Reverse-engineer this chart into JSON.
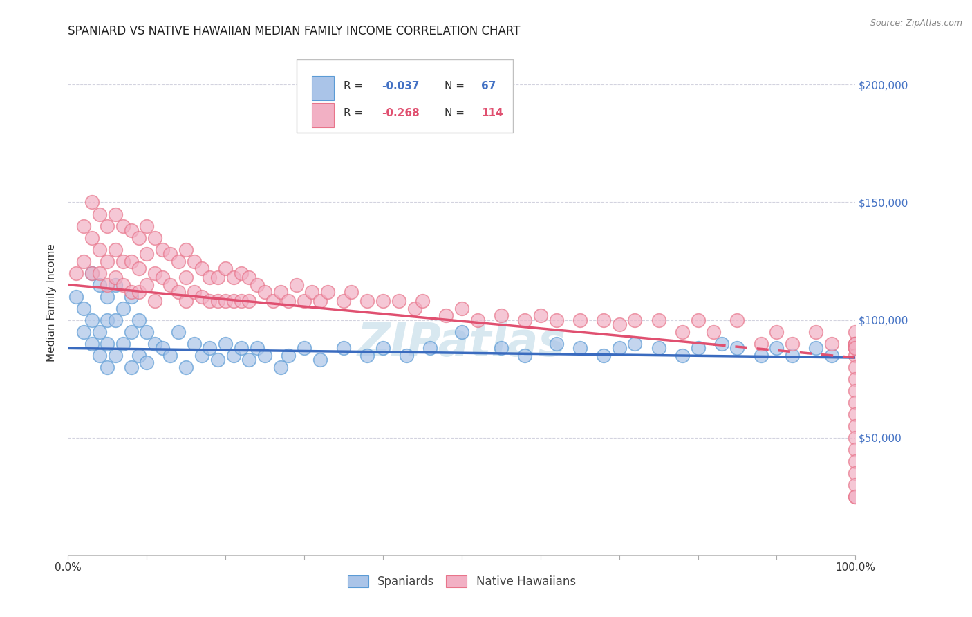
{
  "title": "SPANIARD VS NATIVE HAWAIIAN MEDIAN FAMILY INCOME CORRELATION CHART",
  "source_text": "Source: ZipAtlas.com",
  "ylabel": "Median Family Income",
  "xlim": [
    0,
    100
  ],
  "ylim": [
    0,
    215000
  ],
  "color_spaniards_fill": "#aac4e8",
  "color_hawaiians_fill": "#f2b0c4",
  "color_spaniards_edge": "#5b9bd5",
  "color_hawaiians_edge": "#e8748a",
  "line_color_spaniards": "#3a6bbf",
  "line_color_hawaiians": "#e05070",
  "text_color_blue": "#4472c4",
  "text_color_dark": "#333333",
  "watermark_color": "#d8e8f0",
  "background_color": "#ffffff",
  "grid_color": "#c8c8d8",
  "legend_r1": "-0.037",
  "legend_n1": "67",
  "legend_r2": "-0.268",
  "legend_n2": "114",
  "spaniards_x": [
    1,
    2,
    2,
    3,
    3,
    3,
    4,
    4,
    4,
    5,
    5,
    5,
    5,
    6,
    6,
    6,
    7,
    7,
    8,
    8,
    8,
    9,
    9,
    10,
    10,
    11,
    12,
    13,
    14,
    15,
    16,
    17,
    18,
    19,
    20,
    21,
    22,
    23,
    24,
    25,
    27,
    28,
    30,
    32,
    35,
    38,
    40,
    43,
    46,
    50,
    55,
    58,
    62,
    65,
    68,
    70,
    72,
    75,
    78,
    80,
    83,
    85,
    88,
    90,
    92,
    95,
    97
  ],
  "spaniards_y": [
    110000,
    105000,
    95000,
    120000,
    100000,
    90000,
    115000,
    95000,
    85000,
    110000,
    100000,
    90000,
    80000,
    115000,
    100000,
    85000,
    105000,
    90000,
    110000,
    95000,
    80000,
    100000,
    85000,
    95000,
    82000,
    90000,
    88000,
    85000,
    95000,
    80000,
    90000,
    85000,
    88000,
    83000,
    90000,
    85000,
    88000,
    83000,
    88000,
    85000,
    80000,
    85000,
    88000,
    83000,
    88000,
    85000,
    88000,
    85000,
    88000,
    95000,
    88000,
    85000,
    90000,
    88000,
    85000,
    88000,
    90000,
    88000,
    85000,
    88000,
    90000,
    88000,
    85000,
    88000,
    85000,
    88000,
    85000
  ],
  "hawaiians_x": [
    1,
    2,
    2,
    3,
    3,
    3,
    4,
    4,
    4,
    5,
    5,
    5,
    6,
    6,
    6,
    7,
    7,
    7,
    8,
    8,
    8,
    9,
    9,
    9,
    10,
    10,
    10,
    11,
    11,
    11,
    12,
    12,
    13,
    13,
    14,
    14,
    15,
    15,
    15,
    16,
    16,
    17,
    17,
    18,
    18,
    19,
    19,
    20,
    20,
    21,
    21,
    22,
    22,
    23,
    23,
    24,
    25,
    26,
    27,
    28,
    29,
    30,
    31,
    32,
    33,
    35,
    36,
    38,
    40,
    42,
    44,
    45,
    48,
    50,
    52,
    55,
    58,
    60,
    62,
    65,
    68,
    70,
    72,
    75,
    78,
    80,
    82,
    85,
    88,
    90,
    92,
    95,
    97,
    100,
    100,
    100,
    100,
    100,
    100,
    100,
    100,
    100,
    100,
    100,
    100,
    100,
    100,
    100,
    100,
    100,
    100,
    100,
    100,
    100
  ],
  "hawaiians_y": [
    120000,
    140000,
    125000,
    150000,
    135000,
    120000,
    145000,
    130000,
    120000,
    140000,
    125000,
    115000,
    145000,
    130000,
    118000,
    140000,
    125000,
    115000,
    138000,
    125000,
    112000,
    135000,
    122000,
    112000,
    140000,
    128000,
    115000,
    135000,
    120000,
    108000,
    130000,
    118000,
    128000,
    115000,
    125000,
    112000,
    130000,
    118000,
    108000,
    125000,
    112000,
    122000,
    110000,
    118000,
    108000,
    118000,
    108000,
    122000,
    108000,
    118000,
    108000,
    120000,
    108000,
    118000,
    108000,
    115000,
    112000,
    108000,
    112000,
    108000,
    115000,
    108000,
    112000,
    108000,
    112000,
    108000,
    112000,
    108000,
    108000,
    108000,
    105000,
    108000,
    102000,
    105000,
    100000,
    102000,
    100000,
    102000,
    100000,
    100000,
    100000,
    98000,
    100000,
    100000,
    95000,
    100000,
    95000,
    100000,
    90000,
    95000,
    90000,
    95000,
    90000,
    95000,
    90000,
    88000,
    90000,
    88000,
    90000,
    85000,
    88000,
    80000,
    75000,
    25000,
    70000,
    65000,
    60000,
    55000,
    50000,
    45000,
    40000,
    35000,
    30000,
    25000
  ]
}
